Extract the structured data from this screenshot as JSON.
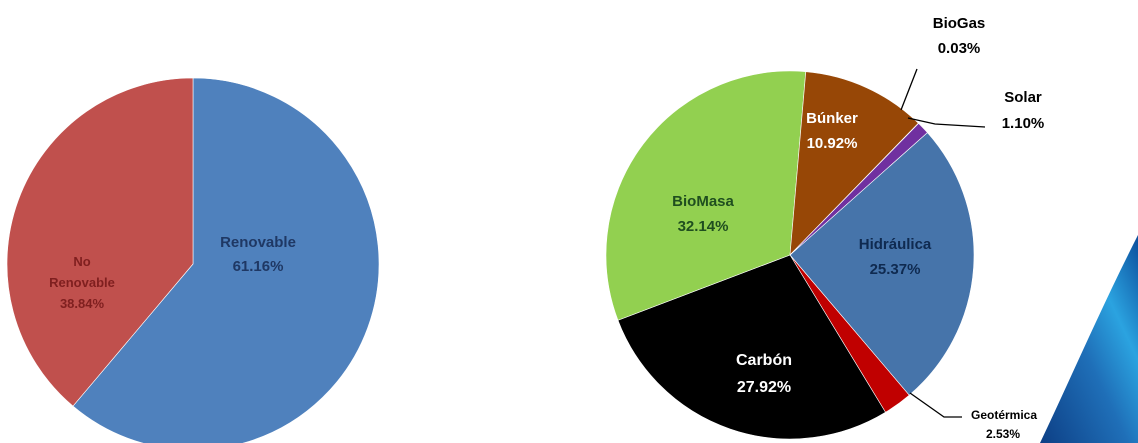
{
  "colors": {
    "renovable": "#4F81BD",
    "no_renovable": "#C0504D",
    "hidraulica": "#4674AA",
    "geotermica": "#C00000",
    "carbon": "#000000",
    "biomasa": "#92D050",
    "bunker": "#974706",
    "biogas": "#FFC000",
    "solar": "#7030A0",
    "decor_blue": "#1F6FB8"
  },
  "chart_data": [
    {
      "type": "pie",
      "title": "",
      "slices": [
        {
          "name": "Renovable",
          "value": 61.16,
          "label": "61.16%",
          "color": "#4F81BD",
          "label_color": "#1F3864"
        },
        {
          "name": "No Renovable",
          "name_lines": [
            "No",
            "Renovable"
          ],
          "value": 38.84,
          "label": "38.84%",
          "color": "#C0504D",
          "label_color": "#7F1F1F"
        }
      ]
    },
    {
      "type": "pie",
      "title": "",
      "slices": [
        {
          "name": "Hidráulica",
          "value": 25.37,
          "label": "25.37%",
          "color": "#4674AA",
          "label_color": "#0F2A50"
        },
        {
          "name": "Geotérmica",
          "value": 2.53,
          "label": "2.53%",
          "color": "#C00000",
          "label_color": "#000000"
        },
        {
          "name": "Carbón",
          "value": 27.92,
          "label": "27.92%",
          "color": "#000000",
          "label_color": "#FFFFFF"
        },
        {
          "name": "BioMasa",
          "value": 32.14,
          "label": "32.14%",
          "color": "#92D050",
          "label_color": "#1F4E1F"
        },
        {
          "name": "Búnker",
          "value": 10.92,
          "label": "10.92%",
          "color": "#974706",
          "label_color": "#FFFFFF"
        },
        {
          "name": "BioGas",
          "value": 0.03,
          "label": "0.03%",
          "color": "#FFC000",
          "label_color": "#000000"
        },
        {
          "name": "Solar",
          "value": 1.1,
          "label": "1.10%",
          "color": "#7030A0",
          "label_color": "#000000"
        }
      ]
    }
  ]
}
